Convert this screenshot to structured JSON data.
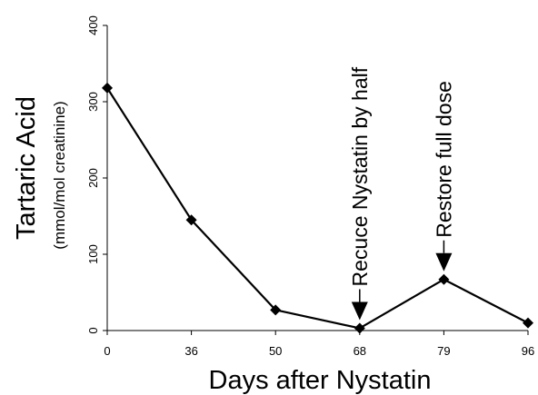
{
  "chart_data": {
    "type": "line",
    "categories": [
      "0",
      "36",
      "50",
      "68",
      "79",
      "96"
    ],
    "values": [
      318,
      145,
      27,
      3,
      67,
      10
    ],
    "xlabel": "Days after Nystatin",
    "ylabel": "Tartaric Acid",
    "ylabel_sub": "(mmol/mol creatinine)",
    "ylim": [
      0,
      400
    ],
    "yticks": [
      0,
      100,
      200,
      300,
      400
    ],
    "grid": false,
    "marker": "diamond",
    "color": "#000000",
    "annotations": [
      {
        "text": "Recuce Nystatin by half",
        "category_index": 3,
        "direction": "down-arrow"
      },
      {
        "text": "Restore full dose",
        "category_index": 4,
        "direction": "down-arrow"
      }
    ]
  }
}
